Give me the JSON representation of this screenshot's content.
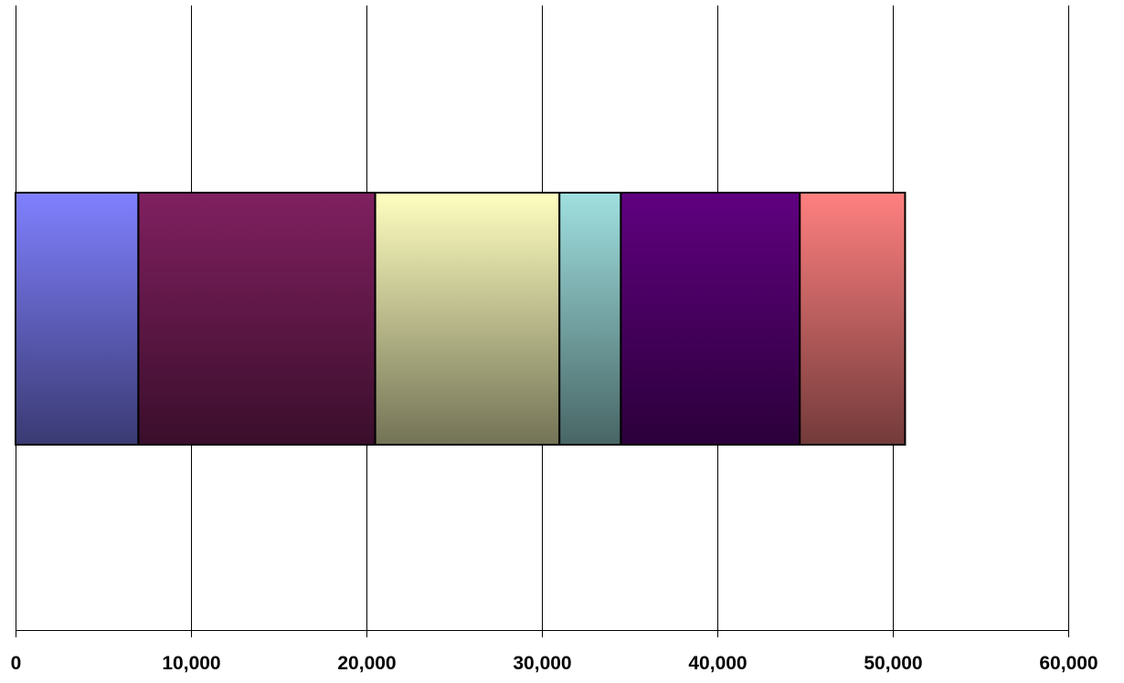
{
  "chart_data": {
    "type": "bar",
    "orientation": "horizontal",
    "stacked": true,
    "title": "",
    "xlabel": "",
    "ylabel": "",
    "xlim": [
      0,
      60000
    ],
    "x_ticks": [
      0,
      10000,
      20000,
      30000,
      40000,
      50000,
      60000
    ],
    "x_tick_labels": [
      "0",
      "10,000",
      "20,000",
      "30,000",
      "40,000",
      "50,000",
      "60,000"
    ],
    "grid": true,
    "legend": "none",
    "categories": [
      ""
    ],
    "series": [
      {
        "values": [
          7000
        ],
        "color": "#8080ff"
      },
      {
        "values": [
          13500
        ],
        "color": "#802060"
      },
      {
        "values": [
          10500
        ],
        "color": "#ffffc0"
      },
      {
        "values": [
          3500
        ],
        "color": "#a0e0e0"
      },
      {
        "values": [
          10200
        ],
        "color": "#600080"
      },
      {
        "values": [
          6000
        ],
        "color": "#ff8080"
      }
    ]
  }
}
